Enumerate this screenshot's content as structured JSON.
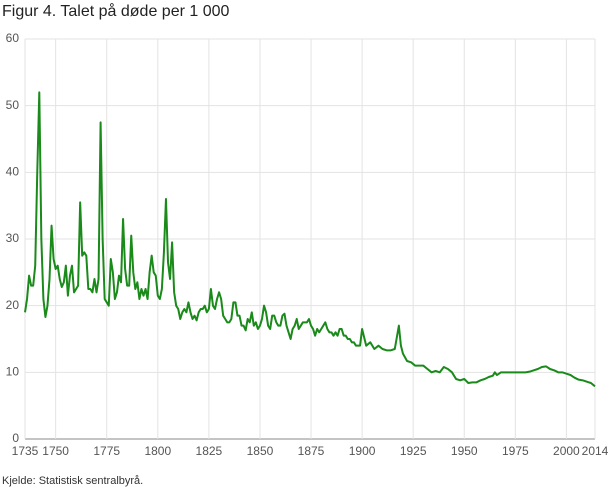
{
  "chart_data": {
    "type": "line",
    "title": "Figur 4. Talet på døde per 1 000",
    "source": "Kjelde: Statistisk sentralbyrå.",
    "xlim": [
      1735,
      2014
    ],
    "ylim": [
      0,
      60
    ],
    "xticks": [
      1735,
      1750,
      1775,
      1800,
      1825,
      1850,
      1875,
      1900,
      1925,
      1950,
      1975,
      2000,
      2014
    ],
    "yticks": [
      0,
      10,
      20,
      30,
      40,
      50,
      60
    ],
    "grid": true,
    "series": [
      {
        "name": "Døde per 1 000",
        "color": "#1a8a1a",
        "x": [
          1735,
          1736,
          1737,
          1738,
          1739,
          1740,
          1741,
          1742,
          1743,
          1744,
          1745,
          1746,
          1747,
          1748,
          1749,
          1750,
          1751,
          1752,
          1753,
          1754,
          1755,
          1756,
          1757,
          1758,
          1759,
          1760,
          1761,
          1762,
          1763,
          1764,
          1765,
          1766,
          1767,
          1768,
          1769,
          1770,
          1771,
          1772,
          1773,
          1774,
          1775,
          1776,
          1777,
          1778,
          1779,
          1780,
          1781,
          1782,
          1783,
          1784,
          1785,
          1786,
          1787,
          1788,
          1789,
          1790,
          1791,
          1792,
          1793,
          1794,
          1795,
          1796,
          1797,
          1798,
          1799,
          1800,
          1801,
          1802,
          1803,
          1804,
          1805,
          1806,
          1807,
          1808,
          1809,
          1810,
          1811,
          1812,
          1813,
          1814,
          1815,
          1816,
          1817,
          1818,
          1819,
          1820,
          1821,
          1822,
          1823,
          1824,
          1825,
          1826,
          1827,
          1828,
          1829,
          1830,
          1831,
          1832,
          1833,
          1834,
          1835,
          1836,
          1837,
          1838,
          1839,
          1840,
          1841,
          1842,
          1843,
          1844,
          1845,
          1846,
          1847,
          1848,
          1849,
          1850,
          1851,
          1852,
          1853,
          1854,
          1855,
          1856,
          1857,
          1858,
          1859,
          1860,
          1861,
          1862,
          1863,
          1864,
          1865,
          1866,
          1867,
          1868,
          1869,
          1870,
          1871,
          1872,
          1873,
          1874,
          1875,
          1876,
          1877,
          1878,
          1879,
          1880,
          1881,
          1882,
          1883,
          1884,
          1885,
          1886,
          1887,
          1888,
          1889,
          1890,
          1891,
          1892,
          1893,
          1894,
          1895,
          1896,
          1897,
          1898,
          1899,
          1900,
          1902,
          1904,
          1906,
          1908,
          1910,
          1912,
          1914,
          1916,
          1918,
          1919,
          1920,
          1922,
          1924,
          1926,
          1928,
          1930,
          1932,
          1934,
          1936,
          1938,
          1940,
          1942,
          1944,
          1945,
          1946,
          1948,
          1950,
          1952,
          1954,
          1956,
          1958,
          1960,
          1962,
          1964,
          1965,
          1966,
          1968,
          1970,
          1972,
          1974,
          1976,
          1978,
          1980,
          1982,
          1984,
          1986,
          1988,
          1990,
          1992,
          1994,
          1996,
          1998,
          2000,
          2002,
          2004,
          2006,
          2008,
          2010,
          2012,
          2014
        ],
        "values": [
          19,
          21,
          24.5,
          23,
          23,
          26,
          40,
          52,
          30,
          21,
          18.3,
          20,
          24,
          32,
          27,
          25.5,
          26,
          24,
          22.8,
          23.5,
          26,
          21.5,
          24.5,
          26,
          22,
          22.5,
          23,
          35.5,
          27.5,
          28,
          27.5,
          22.5,
          22.5,
          22,
          24,
          22,
          24,
          47.5,
          30,
          21,
          20.5,
          20,
          27,
          25,
          21,
          22,
          24.5,
          23.5,
          33,
          25.5,
          23,
          23,
          30.5,
          25,
          22.5,
          23.5,
          21,
          22.5,
          21.5,
          22.5,
          21,
          25,
          27.5,
          25,
          24.5,
          21.5,
          21,
          22.5,
          28,
          36,
          26.5,
          24,
          29.5,
          22,
          20,
          19.5,
          18,
          19,
          19.5,
          19,
          20.5,
          19,
          18,
          18.5,
          17.8,
          19,
          19.5,
          19.5,
          20,
          19,
          19.5,
          22.5,
          20,
          19.5,
          21,
          22,
          21,
          18.5,
          18,
          17.5,
          17.5,
          18,
          20.5,
          20.5,
          18.5,
          18.5,
          17,
          17,
          16.3,
          18,
          17.5,
          19,
          17,
          17.5,
          16.5,
          17,
          18,
          20,
          19,
          17,
          16.5,
          18.5,
          18.5,
          17.5,
          17,
          17,
          18.5,
          18.8,
          17,
          16,
          15,
          16.5,
          17,
          18,
          16.5,
          17,
          17.5,
          17.5,
          17.5,
          18,
          17,
          16.5,
          15.5,
          16.5,
          16,
          16.5,
          17,
          17.5,
          16.5,
          16,
          16,
          15.5,
          16,
          15.5,
          16.5,
          16.5,
          15.5,
          15.5,
          15,
          15,
          14.5,
          14.5,
          14,
          14,
          14,
          16.5,
          14,
          14.5,
          13.5,
          14,
          13.5,
          13.3,
          13.3,
          13.5,
          17,
          14,
          12.8,
          11.7,
          11.5,
          11,
          11,
          11,
          10.5,
          10,
          10.2,
          10,
          10.8,
          10.5,
          10,
          9.5,
          9,
          8.8,
          9,
          8.4,
          8.5,
          8.5,
          8.8,
          9,
          9.3,
          9.5,
          10,
          9.6,
          10,
          10,
          10,
          10,
          10,
          10,
          10,
          10.1,
          10.3,
          10.5,
          10.8,
          10.9,
          10.5,
          10.3,
          10,
          10,
          9.8,
          9.6,
          9.2,
          8.9,
          8.8,
          8.6,
          8.4,
          7.9
        ]
      }
    ]
  }
}
